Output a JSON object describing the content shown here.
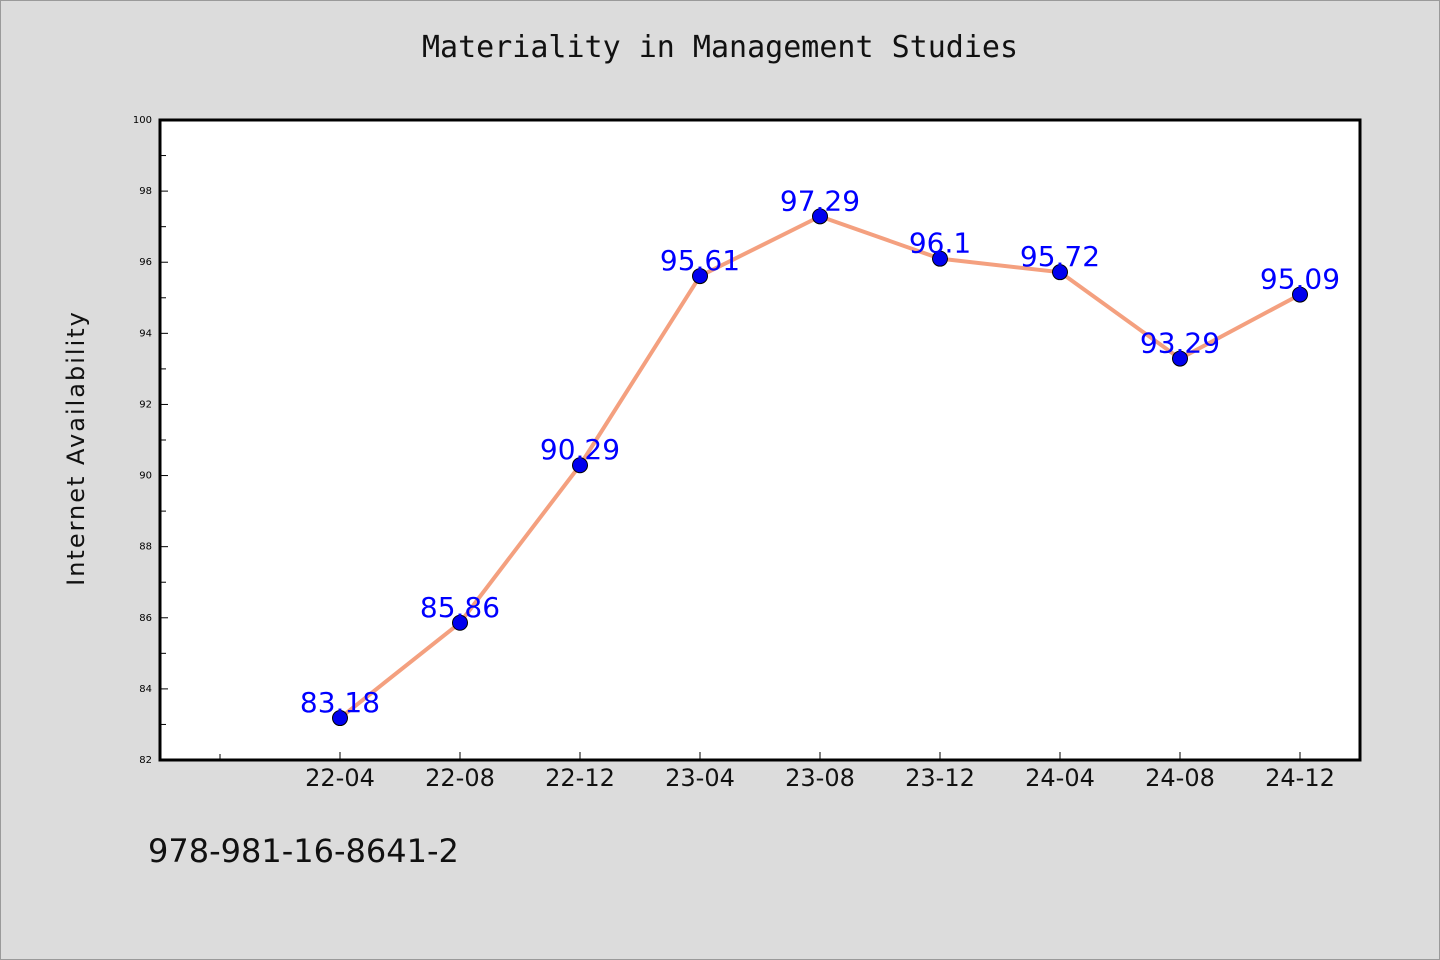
{
  "chart_data": {
    "type": "line",
    "title": "Materiality in Management Studies",
    "xlabel": "",
    "ylabel": "Internet Availability",
    "categories": [
      "22-04",
      "22-08",
      "22-12",
      "23-04",
      "23-08",
      "23-12",
      "24-04",
      "24-08",
      "24-12"
    ],
    "series": [
      {
        "values": [
          83.18,
          85.86,
          90.29,
          95.61,
          97.29,
          96.1,
          95.72,
          93.29,
          95.09
        ],
        "labels": [
          "83.18",
          "85.86",
          "90.29",
          "95.61",
          "97.29",
          "96.1",
          "95.72",
          "93.29",
          "95.09"
        ]
      }
    ],
    "ylim": [
      82,
      100
    ],
    "yticks": [
      "82",
      "84",
      "86",
      "88",
      "90",
      "92",
      "94",
      "96",
      "98",
      "100"
    ],
    "grid": false,
    "legend": "none",
    "colors": {
      "line": "#f4a07f",
      "marker": "#0000ee",
      "data_label": "#0000ff",
      "background": "#dcdcdc",
      "plot_area": "#ffffff"
    }
  },
  "footnote": "978-981-16-8641-2"
}
